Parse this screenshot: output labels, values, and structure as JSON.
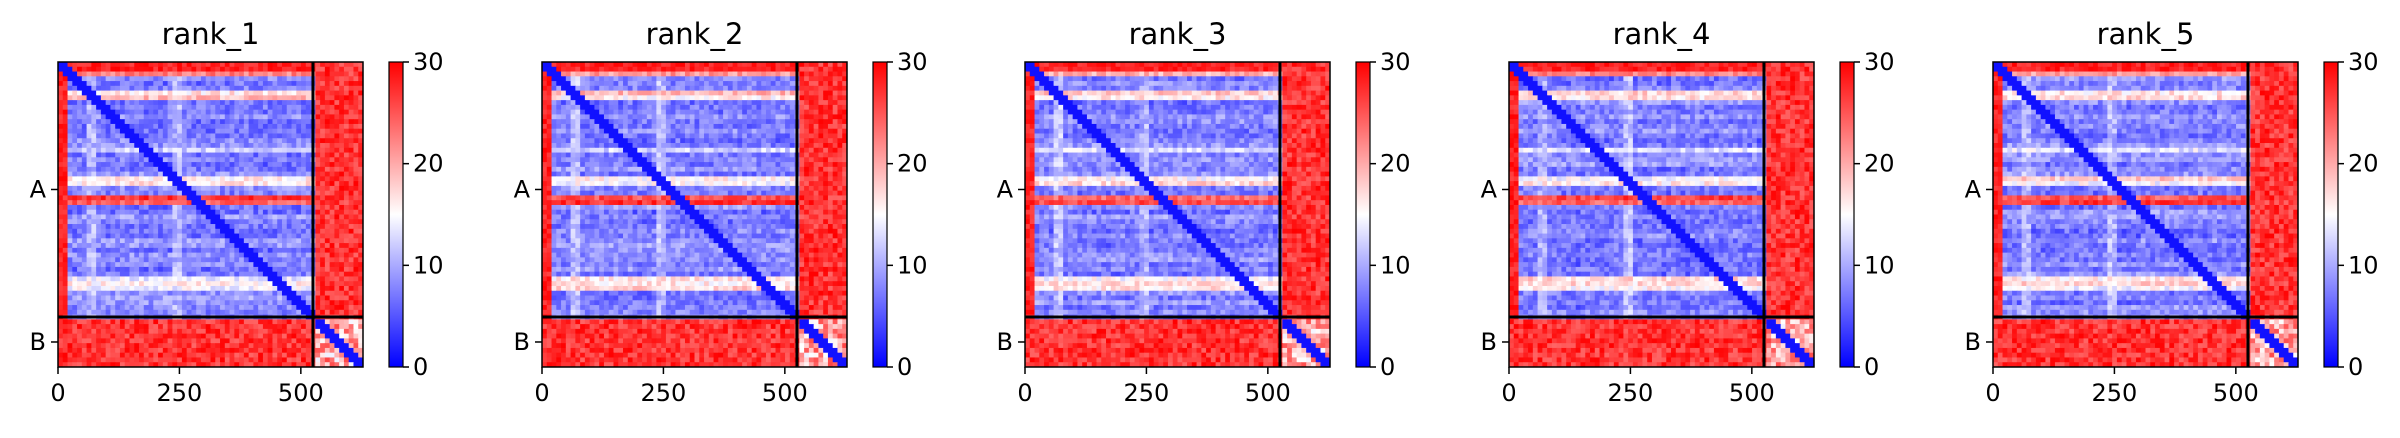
{
  "chart_data": {
    "type": "heatmap",
    "panels": [
      {
        "title": "rank_1"
      },
      {
        "title": "rank_2"
      },
      {
        "title": "rank_3"
      },
      {
        "title": "rank_4"
      },
      {
        "title": "rank_5"
      }
    ],
    "chains": [
      {
        "name": "A",
        "start": 0,
        "end": 525
      },
      {
        "name": "B",
        "start": 525,
        "end": 628
      }
    ],
    "xlim": [
      0,
      628
    ],
    "ylim": [
      628,
      0
    ],
    "x_ticks": [
      0,
      250,
      500
    ],
    "x_tick_labels": [
      "0",
      "250",
      "500"
    ],
    "y_tick_labels": [
      "A",
      "B"
    ],
    "colorbar": {
      "colormap": "bwr",
      "vmin": 0,
      "vmax": 30,
      "ticks": [
        0,
        10,
        20,
        30
      ],
      "tick_labels": [
        "0",
        "10",
        "20",
        "30"
      ],
      "colors": {
        "low": "#0000ff",
        "mid": "#ffffff",
        "high": "#ff0000"
      }
    },
    "grid": false
  }
}
